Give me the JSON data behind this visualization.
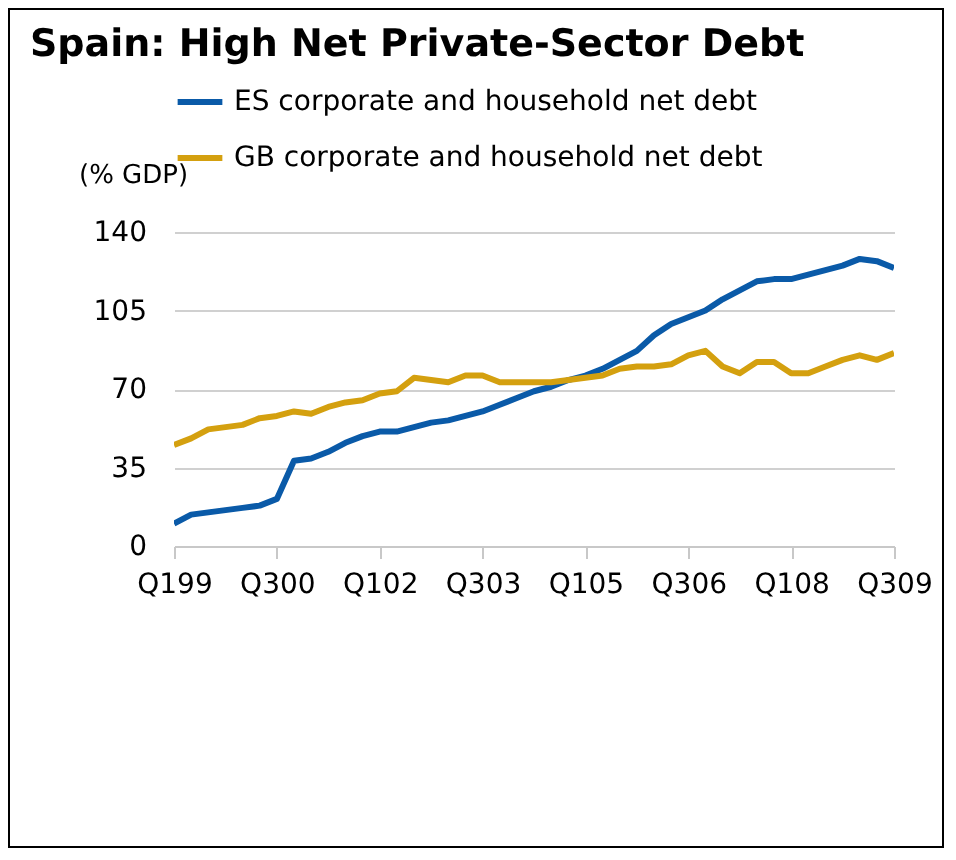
{
  "chart_data": {
    "type": "line",
    "title": "Spain: High Net Private-Sector Debt",
    "ylabel": "(% GDP)",
    "categories": [
      "Q199",
      null,
      null,
      null,
      null,
      null,
      "Q300",
      null,
      null,
      null,
      null,
      null,
      "Q102",
      null,
      null,
      null,
      null,
      null,
      "Q303",
      null,
      null,
      null,
      null,
      null,
      "Q105",
      null,
      null,
      null,
      null,
      null,
      "Q306",
      null,
      null,
      null,
      null,
      null,
      "Q108",
      null,
      null,
      null,
      null,
      null,
      "Q309"
    ],
    "series": [
      {
        "name": "ES corporate and household net debt",
        "color": "#0a5aa8",
        "values": [
          10,
          14,
          15,
          16,
          17,
          18,
          21,
          38,
          39,
          42,
          46,
          49,
          51,
          51,
          53,
          55,
          56,
          58,
          60,
          63,
          66,
          69,
          71,
          74,
          76,
          79,
          83,
          87,
          94,
          99,
          102,
          105,
          110,
          114,
          118,
          119,
          119,
          121,
          123,
          125,
          128,
          127,
          124
        ]
      },
      {
        "name": "GB corporate and household net debt",
        "color": "#d4a00f",
        "values": [
          45,
          48,
          52,
          53,
          54,
          57,
          58,
          60,
          59,
          62,
          64,
          65,
          68,
          69,
          75,
          74,
          73,
          76,
          76,
          73,
          73,
          73,
          73,
          74,
          75,
          76,
          79,
          80,
          80,
          81,
          85,
          87,
          80,
          77,
          82,
          82,
          77,
          77,
          80,
          83,
          85,
          83,
          86
        ]
      }
    ],
    "ylim": [
      0,
      140
    ],
    "yticks": [
      0,
      35,
      70,
      105,
      140
    ],
    "grid": "y",
    "legend": "top"
  }
}
